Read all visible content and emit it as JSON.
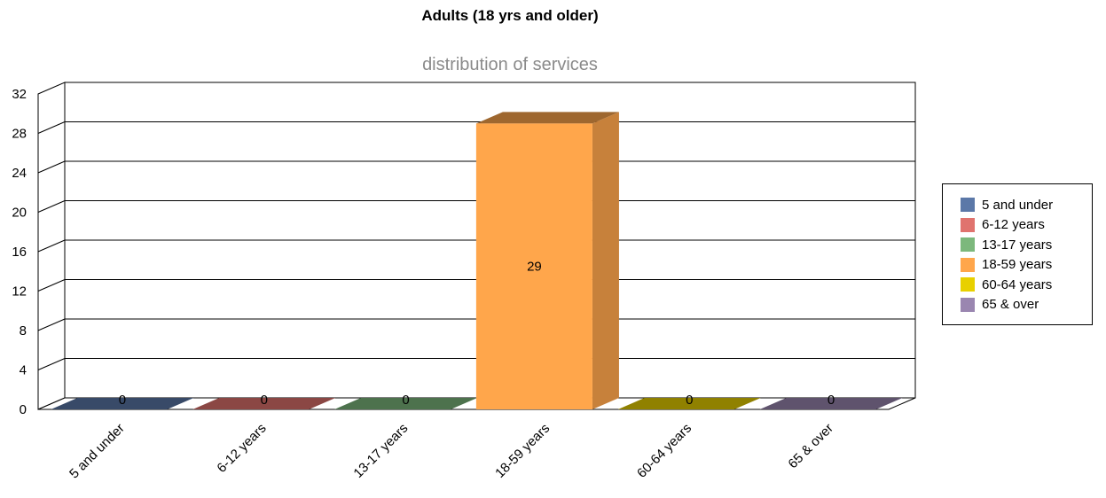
{
  "title": "Adults (18 yrs and older)",
  "subtitle": "distribution of services",
  "chart_data": {
    "type": "bar",
    "title": "Adults (18 yrs and older)",
    "subtitle": "distribution of services",
    "categories": [
      "5 and under",
      "6-12 years",
      "13-17 years",
      "18-59 years",
      "60-64 years",
      "65 & over"
    ],
    "values": [
      0,
      0,
      0,
      29,
      0,
      0
    ],
    "data_labels": [
      "0",
      "0",
      "0",
      "29",
      "0",
      "0"
    ],
    "colors": [
      "#5b78a8",
      "#e0736e",
      "#7cb87c",
      "#ffa64b",
      "#e8d000",
      "#9a86b0"
    ],
    "ylim": [
      0,
      32
    ],
    "yticks": [
      "0",
      "4",
      "8",
      "12",
      "16",
      "20",
      "24",
      "28",
      "32"
    ],
    "grid": true,
    "three_d": true,
    "legend_position": "right"
  },
  "legend": {
    "items": [
      {
        "label": "5 and under",
        "color": "#5b78a8"
      },
      {
        "label": "6-12 years",
        "color": "#e0736e"
      },
      {
        "label": "13-17 years",
        "color": "#7cb87c"
      },
      {
        "label": "18-59 years",
        "color": "#ffa64b"
      },
      {
        "label": "60-64 years",
        "color": "#e8d000"
      },
      {
        "label": "65 & over",
        "color": "#9a86b0"
      }
    ]
  }
}
